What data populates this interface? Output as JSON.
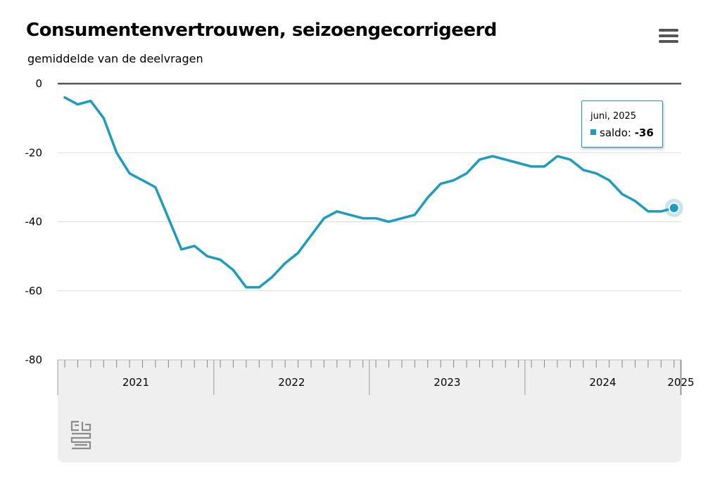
{
  "title": "Consumentenvertrouwen, seizoengecorrigeerd",
  "subtitle": "gemiddelde van de deelvragen",
  "menu_icon": "hamburger-menu-icon",
  "logo_icon": "cbs-logo-icon",
  "colors": {
    "line": "#1a9dbf",
    "grid": "#dddddd",
    "zero": "#555555",
    "footer": "#efefef"
  },
  "tooltip": {
    "date": "juni, 2025",
    "label": "saldo",
    "value": "-36"
  },
  "chart_data": {
    "type": "line",
    "title": "Consumentenvertrouwen, seizoengecorrigeerd",
    "subtitle": "gemiddelde van de deelvragen",
    "ylim": [
      -80,
      0
    ],
    "yticks": [
      "0",
      "-20",
      "-40",
      "-60",
      "-80"
    ],
    "grid": true,
    "x_start": "2021-01",
    "years": [
      "2021",
      "2022",
      "2023",
      "2024",
      "2025"
    ],
    "series": [
      {
        "values": [
          -4,
          -6,
          -5,
          -10,
          -20,
          -26,
          -28,
          -30,
          -39,
          -48,
          -47,
          -50,
          -51,
          -54,
          -59,
          -59,
          -56,
          -52,
          -49,
          -44,
          -39,
          -37,
          -38,
          -39,
          -39,
          -40,
          -39,
          -38,
          -33,
          -29,
          -28,
          -26,
          -22,
          -21,
          -22,
          -23,
          -24,
          -24,
          -21,
          -22,
          -25,
          -26,
          -28,
          -32,
          -34,
          -37,
          -37,
          -36
        ]
      }
    ]
  }
}
